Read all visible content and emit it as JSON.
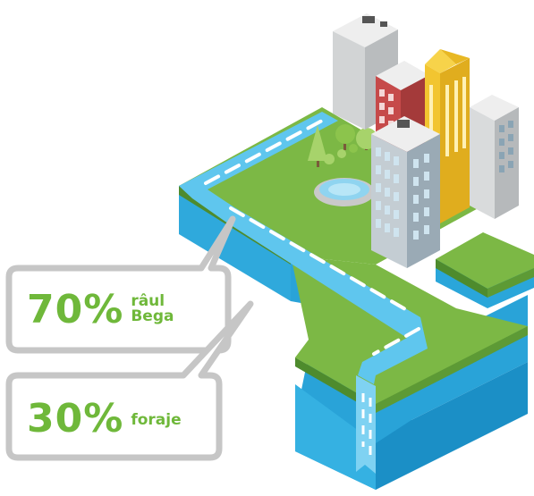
{
  "callouts": [
    {
      "percent": "70%",
      "label_line1": "râul",
      "label_line2": "Bega"
    },
    {
      "percent": "30%",
      "label": "foraje"
    }
  ],
  "colors": {
    "grass": "#7cb845",
    "grass_dark": "#4e8b2d",
    "water": "#3bb6e6",
    "water_dark": "#1b8fc6",
    "river": "#5fc6ee",
    "river_dash": "#ffffff",
    "callout_border": "#c6c6c6",
    "callout_text": "#6fb83a",
    "building_grey": "#d7d9da",
    "building_red": "#c64a4a",
    "building_yellow": "#f2c530",
    "building_blue_grey": "#aab8c2"
  },
  "icons": [
    "tree-icon",
    "fountain-icon",
    "building-icon",
    "waterfall-icon"
  ]
}
